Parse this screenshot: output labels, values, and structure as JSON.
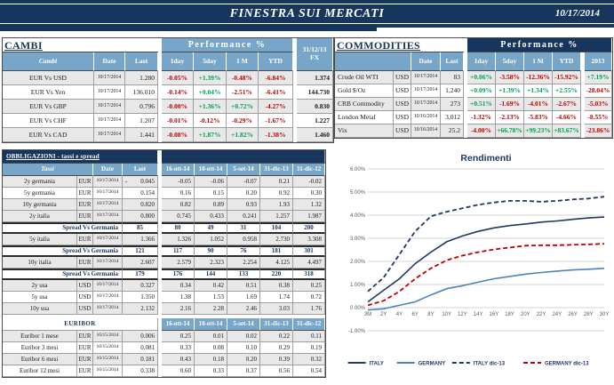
{
  "banner": {
    "title": "FINESTRA SUI MERCATI",
    "date": "10/17/2014"
  },
  "colors": {
    "navy": "#17365d",
    "header_blue": "#78a6c8",
    "negative": "#c00000",
    "positive": "#00a050",
    "stripe": "#e8e8e8",
    "italy_line": "#1f3864",
    "germany_line": "#4f81bd",
    "germany13_line": "#c00000"
  },
  "cambi": {
    "title": "CAMBI",
    "perf_header": "Performance  %",
    "headers": {
      "name": "Cambi",
      "date": "Date",
      "last": "Last",
      "perf": [
        "1day",
        "5day",
        "1 M",
        "YTD"
      ],
      "fx": "31/12/13 FX"
    },
    "rows": [
      {
        "name": "EUR Vs USD",
        "date": "10/17/2014",
        "last": "1.280",
        "perf": [
          "-0.05%",
          "+1.39%",
          "-0.48%",
          "-6.84%"
        ],
        "fx": "1.374"
      },
      {
        "name": "EUR Vs Yen",
        "date": "10/17/2014",
        "last": "136.010",
        "perf": [
          "-0.14%",
          "+0.04%",
          "-2.51%",
          "-6.41%"
        ],
        "fx": "144.730"
      },
      {
        "name": "EUR Vs GBP",
        "date": "10/17/2014",
        "last": "0.796",
        "perf": [
          "-0.00%",
          "+1.36%",
          "+0.72%",
          "-4.27%"
        ],
        "fx": "0.830"
      },
      {
        "name": "EUR Vs CHF",
        "date": "10/17/2014",
        "last": "1.207",
        "perf": [
          "-0.01%",
          "-0.12%",
          "-0.29%",
          "-1.67%"
        ],
        "fx": "1.227"
      },
      {
        "name": "EUR Vs CAD",
        "date": "10/17/2014",
        "last": "1.441",
        "perf": [
          "-0.08%",
          "+1.87%",
          "+1.82%",
          "-1.38%"
        ],
        "fx": "1.460"
      }
    ]
  },
  "commodities": {
    "title": "COMMODITIES",
    "perf_header": "Performance  %",
    "headers": {
      "date": "Date",
      "last": "Last",
      "perf": [
        "1day",
        "5day",
        "1 M",
        "YTD",
        "2013"
      ]
    },
    "rows": [
      {
        "name": "Crude Oil WTI",
        "ccy": "USD",
        "date": "10/17/2014",
        "last": "83",
        "perf": [
          "+0.06%",
          "-3.58%",
          "-12.36%",
          "-15.92%",
          "+7.19%"
        ]
      },
      {
        "name": "Gold $/Oz",
        "ccy": "USD",
        "date": "10/17/2014",
        "last": "1,240",
        "perf": [
          "+0.09%",
          "+1.39%",
          "+1.34%",
          "+2.55%",
          "-28.04%"
        ]
      },
      {
        "name": "CRB Commodity",
        "ccy": "USD",
        "date": "10/17/2014",
        "last": "273",
        "perf": [
          "+0.51%",
          "-1.69%",
          "-4.01%",
          "-2.67%",
          "-5.03%"
        ]
      },
      {
        "name": "London Metal",
        "ccy": "USD",
        "date": "10/16/2014",
        "last": "3,012",
        "perf": [
          "-1.32%",
          "-2.13%",
          "-5.83%",
          "-4.66%",
          "-8.55%"
        ]
      },
      {
        "name": "Vix",
        "ccy": "USD",
        "date": "10/16/2014",
        "last": "25.2",
        "perf": [
          "-4.00%",
          "+66.78%",
          "+99.23%",
          "+83.67%",
          "-23.86%"
        ]
      }
    ]
  },
  "obbligazioni": {
    "title": "OBBLIGAZIONI - tassi e spread",
    "headers": {
      "name": "Tassi",
      "date": "Date",
      "last": "Last",
      "cols": [
        "16-ott-14",
        "10-ott-14",
        "5-set-14",
        "31-dic-13",
        "31-dic-12"
      ]
    },
    "rows": [
      {
        "type": "data",
        "name": "2y germania",
        "ccy": "EUR",
        "date": "10/17/2014",
        "last": "- 0.045",
        "vals": [
          "-0.05",
          "-0.06",
          "-0.07",
          "0.21",
          "-0.02"
        ],
        "shade": true
      },
      {
        "type": "data",
        "name": "5y germania",
        "ccy": "EUR",
        "date": "10/17/2014",
        "last": "0.154",
        "vals": [
          "0.16",
          "0.15",
          "0.20",
          "0.92",
          "0.30"
        ],
        "shade": false
      },
      {
        "type": "data",
        "name": "10y germania",
        "ccy": "EUR",
        "date": "10/17/2014",
        "last": "0.820",
        "vals": [
          "0.82",
          "0.89",
          "0.93",
          "1.93",
          "1.32"
        ],
        "shade": true
      },
      {
        "type": "data",
        "name": "2y italia",
        "ccy": "EUR",
        "date": "10/17/2014",
        "last": "0.800",
        "vals": [
          "0.745",
          "0.433",
          "0.241",
          "1.257",
          "1.987"
        ],
        "shade": true
      },
      {
        "type": "spread",
        "label": "Spread Vs Germania",
        "last": "85",
        "vals": [
          "80",
          "49",
          "31",
          "104",
          "200"
        ]
      },
      {
        "type": "data",
        "name": "5y italia",
        "ccy": "EUR",
        "date": "10/17/2014",
        "last": "1.366",
        "vals": [
          "1.326",
          "1.052",
          "0.958",
          "2.730",
          "3.308"
        ],
        "shade": true
      },
      {
        "type": "spread",
        "label": "Spread Vs Germania",
        "last": "121",
        "vals": [
          "117",
          "90",
          "76",
          "181",
          "301"
        ]
      },
      {
        "type": "data",
        "name": "10y italia",
        "ccy": "EUR",
        "date": "10/17/2014",
        "last": "2.607",
        "vals": [
          "2.579",
          "2.323",
          "2.254",
          "4.125",
          "4.497"
        ],
        "shade": true
      },
      {
        "type": "spread",
        "label": "Spread Vs Germania",
        "last": "179",
        "vals": [
          "176",
          "144",
          "133",
          "220",
          "318"
        ]
      },
      {
        "type": "data",
        "name": "2y usa",
        "ccy": "USD",
        "date": "10/17/2014",
        "last": "0.327",
        "vals": [
          "0.34",
          "0.42",
          "0.51",
          "0.38",
          "0.25"
        ],
        "shade": true
      },
      {
        "type": "data",
        "name": "5y usa",
        "ccy": "USD",
        "date": "10/17/2014",
        "last": "1.350",
        "vals": [
          "1.38",
          "1.53",
          "1.69",
          "1.74",
          "0.72"
        ],
        "shade": false
      },
      {
        "type": "data",
        "name": "10y usa",
        "ccy": "USD",
        "date": "10/17/2014",
        "last": "2.132",
        "vals": [
          "2.16",
          "2.28",
          "2.46",
          "3.03",
          "1.76"
        ],
        "shade": true
      }
    ]
  },
  "euribor": {
    "title": "EURIBOR",
    "cols": [
      "16-ott-14",
      "10-ott-14",
      "5-set-14",
      "31-dic-13",
      "31-dic-12"
    ],
    "rows": [
      {
        "name": "Euribor 1 mese",
        "ccy": "EUR",
        "date": "10/15/2014",
        "last": "0.006",
        "vals": [
          "0.25",
          "0.01",
          "0.02",
          "0.22",
          "0.11"
        ],
        "shade": true
      },
      {
        "name": "Euribor 3 mesi",
        "ccy": "EUR",
        "date": "10/15/2014",
        "last": "0.081",
        "vals": [
          "0.33",
          "0.08",
          "0.10",
          "0.29",
          "0.19"
        ],
        "shade": false
      },
      {
        "name": "Euribor 6 mesi",
        "ccy": "EUR",
        "date": "10/15/2014",
        "last": "0.181",
        "vals": [
          "0.43",
          "0.18",
          "0.20",
          "0.39",
          "0.32"
        ],
        "shade": true
      },
      {
        "name": "Euribor 12 mesi",
        "ccy": "EUR",
        "date": "10/15/2014",
        "last": "0.338",
        "vals": [
          "0.60",
          "0.33",
          "0.37",
          "0.56",
          "0.54"
        ],
        "shade": false
      }
    ]
  },
  "chart_data": {
    "type": "line",
    "title": "Rendimenti",
    "categories": [
      "3M",
      "2Y",
      "4Y",
      "6Y",
      "8Y",
      "10Y",
      "12Y",
      "14Y",
      "16Y",
      "18Y",
      "20Y",
      "22Y",
      "24Y",
      "26Y",
      "28Y",
      "30Y"
    ],
    "ylabel": "",
    "xlabel": "",
    "ylim": [
      -1,
      6
    ],
    "ytick_step": 1,
    "ytick_format": "percent_2dp",
    "grid": true,
    "legend_position": "bottom",
    "series": [
      {
        "name": "ITALY",
        "style": "solid",
        "color": "#1f3864",
        "values": [
          0.25,
          0.75,
          1.25,
          1.9,
          2.4,
          2.85,
          3.1,
          3.3,
          3.45,
          3.55,
          3.62,
          3.7,
          3.75,
          3.82,
          3.88,
          3.92
        ]
      },
      {
        "name": "GERMANY",
        "style": "solid",
        "color": "#4f81bd",
        "values": [
          -0.1,
          -0.05,
          0.1,
          0.25,
          0.55,
          0.82,
          0.95,
          1.1,
          1.25,
          1.35,
          1.45,
          1.52,
          1.58,
          1.63,
          1.66,
          1.7
        ]
      },
      {
        "name": "ITALY dic-13",
        "style": "dashed",
        "color": "#1f3864",
        "values": [
          0.7,
          1.3,
          2.3,
          3.3,
          3.95,
          4.15,
          4.3,
          4.45,
          4.55,
          4.62,
          4.62,
          4.58,
          4.62,
          4.68,
          4.72,
          4.8
        ]
      },
      {
        "name": "GERMANY dic-13",
        "style": "dashed",
        "color": "#c00000",
        "values": [
          0.1,
          0.3,
          0.7,
          1.25,
          1.7,
          2.05,
          2.25,
          2.4,
          2.52,
          2.6,
          2.68,
          2.7,
          2.7,
          2.72,
          2.74,
          2.76
        ]
      }
    ]
  }
}
